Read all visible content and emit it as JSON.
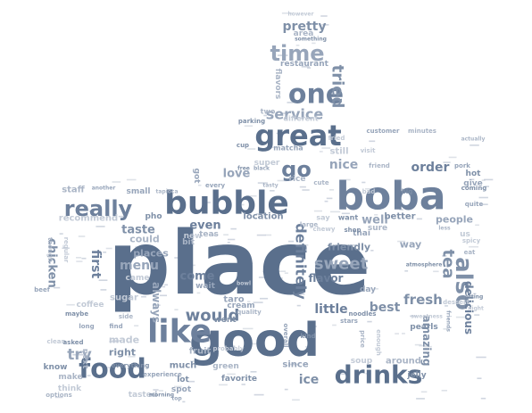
{
  "colors": {
    "background": "#ffffff",
    "palette": [
      "#5a6f8c",
      "#6d809c",
      "#7f90a8",
      "#97a5ba",
      "#aab5c6",
      "#c2cad6"
    ]
  },
  "words": [
    {
      "text": "place",
      "weight": 100
    },
    {
      "text": "good",
      "weight": 60
    },
    {
      "text": "bubble",
      "weight": 38
    },
    {
      "text": "boba",
      "weight": 38
    },
    {
      "text": "great",
      "weight": 30
    },
    {
      "text": "like",
      "weight": 30
    },
    {
      "text": "food",
      "weight": 30
    },
    {
      "text": "one",
      "weight": 27
    },
    {
      "text": "drinks",
      "weight": 26
    },
    {
      "text": "really",
      "weight": 24
    },
    {
      "text": "also",
      "weight": 23
    },
    {
      "text": "time",
      "weight": 20
    },
    {
      "text": "go",
      "weight": 20
    },
    {
      "text": "tea",
      "weight": 18
    },
    {
      "text": "sweet",
      "weight": 16
    },
    {
      "text": "definitely",
      "weight": 14
    },
    {
      "text": "tried",
      "weight": 14
    },
    {
      "text": "service",
      "weight": 14
    },
    {
      "text": "would",
      "weight": 14
    },
    {
      "text": "fresh",
      "weight": 13
    },
    {
      "text": "try",
      "weight": 13
    },
    {
      "text": "order",
      "weight": 13
    },
    {
      "text": "pretty",
      "weight": 13
    },
    {
      "text": "nice",
      "weight": 12
    },
    {
      "text": "little",
      "weight": 12
    },
    {
      "text": "best",
      "weight": 12
    },
    {
      "text": "menu",
      "weight": 12
    },
    {
      "text": "first",
      "weight": 12
    },
    {
      "text": "ice",
      "weight": 12
    },
    {
      "text": "love",
      "weight": 12
    },
    {
      "text": "come",
      "weight": 12
    },
    {
      "text": "taste",
      "weight": 11
    },
    {
      "text": "well",
      "weight": 11
    },
    {
      "text": "even",
      "weight": 11
    },
    {
      "text": "chicken",
      "weight": 11
    },
    {
      "text": "people",
      "weight": 10
    },
    {
      "text": "delicious",
      "weight": 10
    },
    {
      "text": "amazing",
      "weight": 10
    },
    {
      "text": "always",
      "weight": 10
    },
    {
      "text": "flavor",
      "weight": 10
    },
    {
      "text": "friendly",
      "weight": 9
    },
    {
      "text": "places",
      "weight": 9
    },
    {
      "text": "could",
      "weight": 9
    },
    {
      "text": "made",
      "weight": 9
    },
    {
      "text": "right",
      "weight": 9
    },
    {
      "text": "way",
      "weight": 8
    },
    {
      "text": "staff",
      "weight": 8
    },
    {
      "text": "recommend",
      "weight": 8
    },
    {
      "text": "location",
      "weight": 8
    },
    {
      "text": "taro",
      "weight": 8
    },
    {
      "text": "fruit",
      "weight": 8
    },
    {
      "text": "sugar",
      "weight": 8
    },
    {
      "text": "better",
      "weight": 8
    },
    {
      "text": "since",
      "weight": 8
    },
    {
      "text": "around",
      "weight": 7
    },
    {
      "text": "still",
      "weight": 7
    },
    {
      "text": "much",
      "weight": 7
    },
    {
      "text": "got",
      "weight": 7
    },
    {
      "text": "flavors",
      "weight": 7
    },
    {
      "text": "soup",
      "weight": 7
    },
    {
      "text": "lot",
      "weight": 7
    },
    {
      "text": "spot",
      "weight": 7
    },
    {
      "text": "make",
      "weight": 7
    },
    {
      "text": "think",
      "weight": 7
    },
    {
      "text": "know",
      "weight": 7
    },
    {
      "text": "cream",
      "weight": 7
    },
    {
      "text": "green",
      "weight": 7
    },
    {
      "text": "coffee",
      "weight": 7
    },
    {
      "text": "pearls",
      "weight": 7
    },
    {
      "text": "restaurant",
      "weight": 6
    },
    {
      "text": "area",
      "weight": 6
    },
    {
      "text": "us",
      "weight": 6
    },
    {
      "text": "hot",
      "weight": 6
    },
    {
      "text": "give",
      "weight": 6
    },
    {
      "text": "bit",
      "weight": 6
    },
    {
      "text": "new",
      "weight": 6
    },
    {
      "text": "pho",
      "weight": 6
    },
    {
      "text": "small",
      "weight": 6
    },
    {
      "text": "rice",
      "weight": 6
    },
    {
      "text": "super",
      "weight": 6
    },
    {
      "text": "went",
      "weight": 6
    },
    {
      "text": "wait",
      "weight": 6
    },
    {
      "text": "teas",
      "weight": 6
    },
    {
      "text": "tasted",
      "weight": 6
    },
    {
      "text": "favorite",
      "weight": 6
    },
    {
      "text": "day",
      "weight": 6
    },
    {
      "text": "next",
      "weight": 6
    },
    {
      "text": "came",
      "weight": 6
    },
    {
      "text": "jelly",
      "weight": 6
    },
    {
      "text": "thai",
      "weight": 6
    },
    {
      "text": "sure",
      "weight": 6
    },
    {
      "text": "say",
      "weight": 6
    },
    {
      "text": "want",
      "weight": 6
    },
    {
      "text": "matcha",
      "weight": 5
    },
    {
      "text": "two",
      "weight": 5
    },
    {
      "text": "different",
      "weight": 5
    },
    {
      "text": "parking",
      "weight": 5
    },
    {
      "text": "customer",
      "weight": 5
    },
    {
      "text": "minutes",
      "weight": 5
    },
    {
      "text": "however",
      "weight": 4
    },
    {
      "text": "something",
      "weight": 4
    },
    {
      "text": "another",
      "weight": 4
    },
    {
      "text": "tapioca",
      "weight": 4
    },
    {
      "text": "chewy",
      "weight": 4
    },
    {
      "text": "shop",
      "weight": 4
    },
    {
      "text": "beef",
      "weight": 4
    },
    {
      "text": "quality",
      "weight": 4
    },
    {
      "text": "probably",
      "weight": 4
    },
    {
      "text": "everything",
      "weight": 4
    },
    {
      "text": "experience",
      "weight": 4
    },
    {
      "text": "options",
      "weight": 4
    },
    {
      "text": "clean",
      "weight": 4
    },
    {
      "text": "asked",
      "weight": 4
    },
    {
      "text": "find",
      "weight": 4
    },
    {
      "text": "though",
      "weight": 4
    },
    {
      "text": "regular",
      "weight": 4
    },
    {
      "text": "maybe",
      "weight": 4
    },
    {
      "text": "long",
      "weight": 4
    },
    {
      "text": "side",
      "weight": 4
    },
    {
      "text": "bad",
      "weight": 4
    },
    {
      "text": "big",
      "weight": 4
    },
    {
      "text": "pork",
      "weight": 4
    },
    {
      "text": "eat",
      "weight": 4
    },
    {
      "text": "spicy",
      "weight": 4
    },
    {
      "text": "coming",
      "weight": 4
    },
    {
      "text": "quite",
      "weight": 4
    },
    {
      "text": "friend",
      "weight": 4
    },
    {
      "text": "visit",
      "weight": 4
    },
    {
      "text": "cup",
      "weight": 4
    },
    {
      "text": "every",
      "weight": 4
    },
    {
      "text": "large",
      "weight": 4
    },
    {
      "text": "dessert",
      "weight": 4
    },
    {
      "text": "noodles",
      "weight": 4
    },
    {
      "text": "stars",
      "weight": 4
    },
    {
      "text": "price",
      "weight": 4
    },
    {
      "text": "enough",
      "weight": 4
    },
    {
      "text": "kind",
      "weight": 4
    },
    {
      "text": "overall",
      "weight": 4
    },
    {
      "text": "cute",
      "weight": 4
    },
    {
      "text": "fried",
      "weight": 4
    },
    {
      "text": "free",
      "weight": 3
    },
    {
      "text": "black",
      "weight": 3
    },
    {
      "text": "tasty",
      "weight": 3
    },
    {
      "text": "bowl",
      "weight": 3
    },
    {
      "text": "morning",
      "weight": 3
    },
    {
      "text": "top",
      "weight": 3
    },
    {
      "text": "actually",
      "weight": 3
    },
    {
      "text": "sweetness",
      "weight": 3
    },
    {
      "text": "atmosphere",
      "weight": 3
    },
    {
      "text": "friends",
      "weight": 3
    },
    {
      "text": "less",
      "weight": 3
    },
    {
      "text": "night",
      "weight": 3
    },
    {
      "text": "getting",
      "weight": 3
    }
  ]
}
